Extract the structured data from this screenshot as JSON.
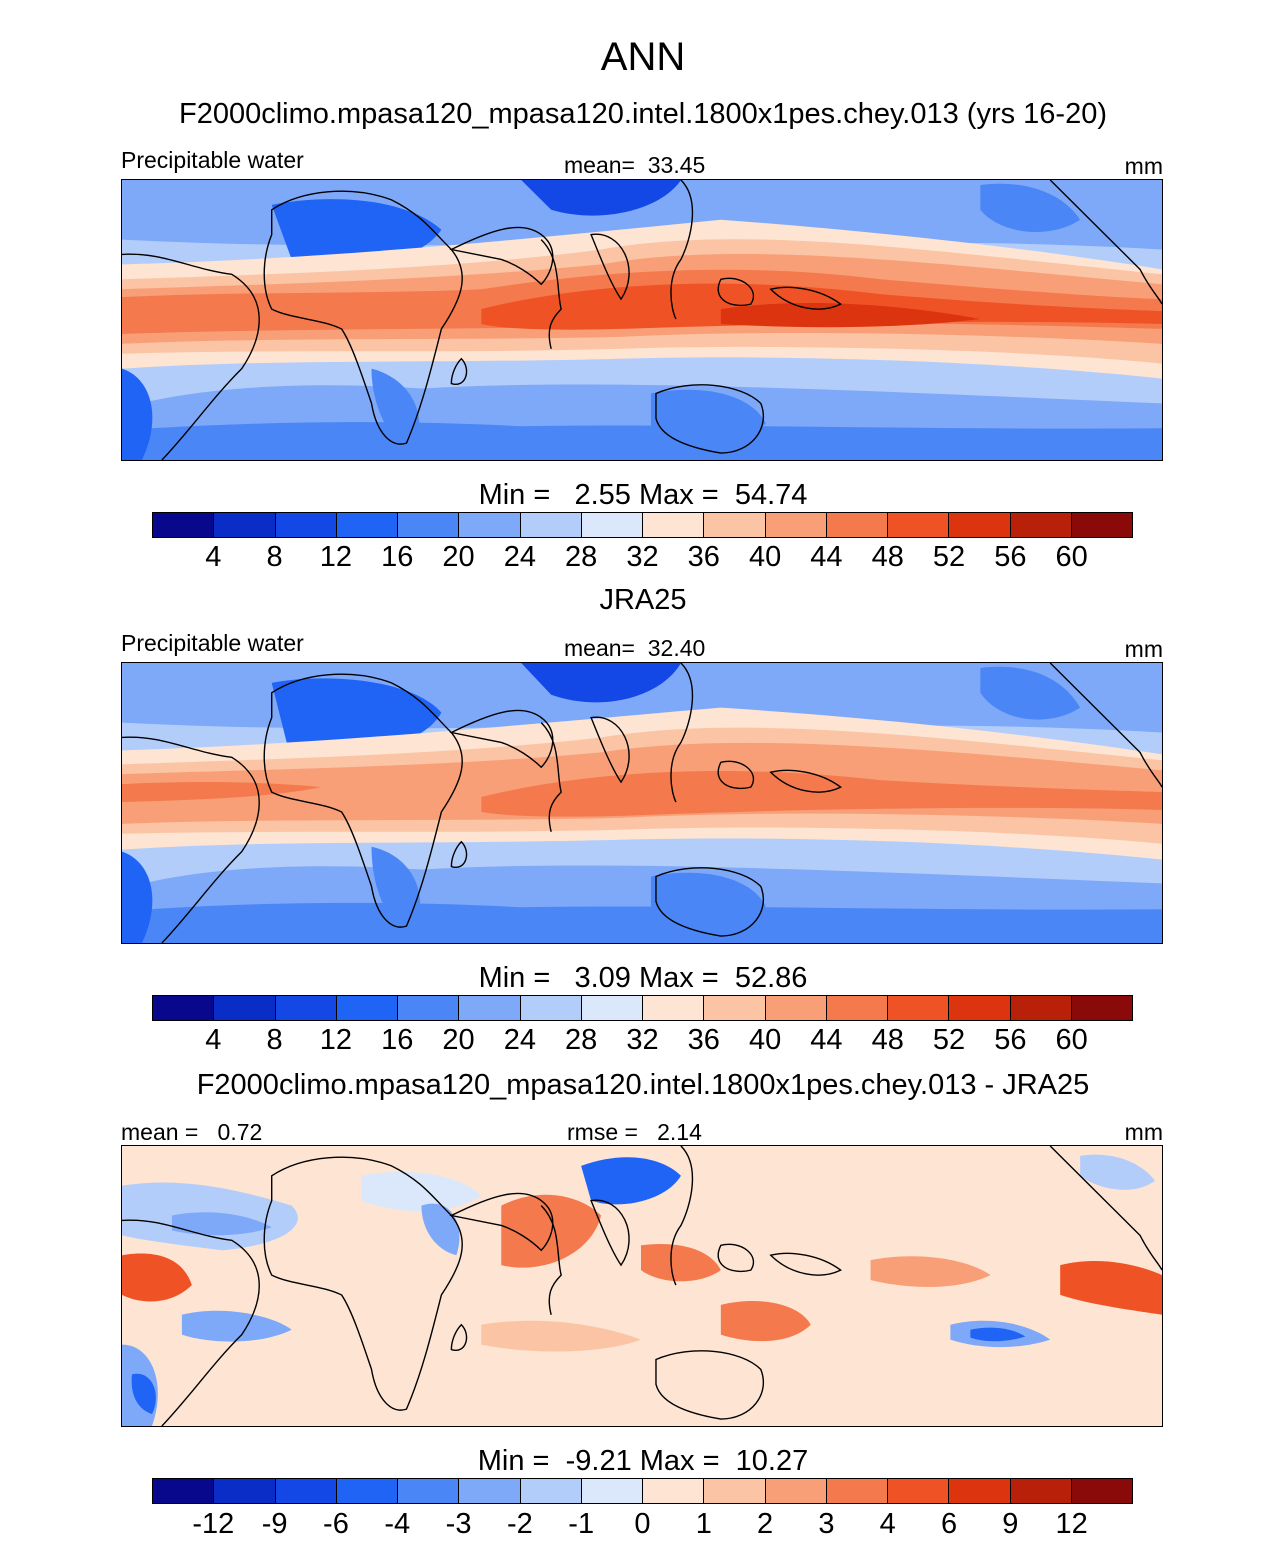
{
  "main_title": "ANN",
  "colors": {
    "abs_scale": [
      "#08088c",
      "#0a2dc8",
      "#1448e6",
      "#2064f5",
      "#4a86f6",
      "#7ea8f8",
      "#b3cdfa",
      "#dbe8fc",
      "#fde4d3",
      "#fbc4a5",
      "#f89f78",
      "#f47a4e",
      "#ef5325",
      "#dc340e",
      "#b8200a",
      "#8a0a0a"
    ],
    "diff_scale": [
      "#08088c",
      "#0a2dc8",
      "#1448e6",
      "#2064f5",
      "#4a86f6",
      "#7ea8f8",
      "#b3cdfa",
      "#dbe8fc",
      "#fde4d3",
      "#fbc4a5",
      "#f89f78",
      "#f47a4e",
      "#ef5325",
      "#dc340e",
      "#b8200a",
      "#8a0a0a"
    ]
  },
  "panels": [
    {
      "title": "F2000climo.mpasa120_mpasa120.intel.1800x1pes.chey.013 (yrs 16-20)",
      "left_label": "Precipitable water",
      "center_label": "mean=  33.45",
      "right_label": "mm",
      "minmax": "Min =   2.55 Max =  54.74",
      "tick_labels": [
        "4",
        "8",
        "12",
        "16",
        "20",
        "24",
        "28",
        "32",
        "36",
        "40",
        "44",
        "48",
        "52",
        "56",
        "60"
      ],
      "scale": "abs"
    },
    {
      "title": "JRA25",
      "left_label": "Precipitable water",
      "center_label": "mean=  32.40",
      "right_label": "mm",
      "minmax": "Min =   3.09 Max =  52.86",
      "tick_labels": [
        "4",
        "8",
        "12",
        "16",
        "20",
        "24",
        "28",
        "32",
        "36",
        "40",
        "44",
        "48",
        "52",
        "56",
        "60"
      ],
      "scale": "abs"
    },
    {
      "title": "F2000climo.mpasa120_mpasa120.intel.1800x1pes.chey.013 - JRA25",
      "left_label": "mean =   0.72",
      "center_label": "rmse =   2.14",
      "right_label": "mm",
      "minmax": "Min =  -9.21 Max =  10.27",
      "tick_labels": [
        "-12",
        "-9",
        "-6",
        "-4",
        "-3",
        "-2",
        "-1",
        "0",
        "1",
        "2",
        "3",
        "4",
        "6",
        "9",
        "12"
      ],
      "scale": "diff"
    }
  ]
}
